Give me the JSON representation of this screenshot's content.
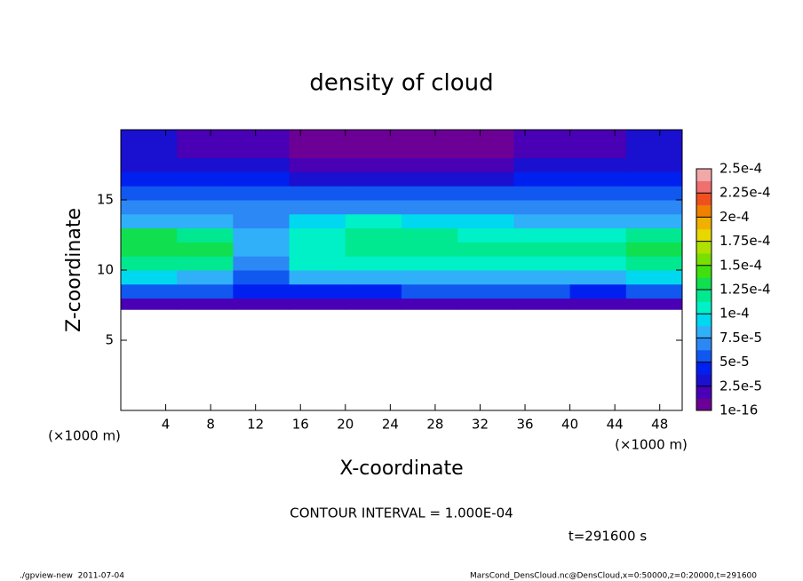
{
  "chart_data": {
    "type": "heatmap",
    "title": "density of cloud",
    "x_label": "X-coordinate",
    "y_label": "Z-coordinate",
    "x_unit_left": "(×1000 m)",
    "x_unit_right": "(×1000 m)",
    "xlim": [
      0,
      50
    ],
    "ylim": [
      0,
      20
    ],
    "xticks": [
      4,
      8,
      12,
      16,
      20,
      24,
      28,
      32,
      36,
      40,
      44,
      48
    ],
    "yticks": [
      5,
      10,
      15
    ],
    "x_bins": [
      0,
      5,
      10,
      15,
      20,
      25,
      30,
      35,
      40,
      45,
      50
    ],
    "y_bins": [
      7.2,
      8,
      9,
      10,
      11,
      12,
      13,
      14,
      15,
      16,
      17,
      18,
      19,
      20
    ],
    "values": [
      [
        1.5e-05,
        1.5e-05,
        1.8e-05,
        1.5e-05,
        1.8e-05,
        1.8e-05,
        1.8e-05,
        1.8e-05,
        1.5e-05,
        1.8e-05
      ],
      [
        5e-05,
        5e-05,
        4e-05,
        4.5e-05,
        4.5e-05,
        5e-05,
        5e-05,
        5e-05,
        4.5e-05,
        5e-05
      ],
      [
        9e-05,
        8.5e-05,
        6e-05,
        8e-05,
        8e-05,
        8.5e-05,
        8.5e-05,
        8e-05,
        8e-05,
        9e-05
      ],
      [
        0.00012,
        0.000115,
        7e-05,
        0.000105,
        0.00011,
        0.00011,
        0.00011,
        0.00011,
        0.000105,
        0.000115
      ],
      [
        0.00013,
        0.000125,
        8e-05,
        0.00011,
        0.00012,
        0.00012,
        0.000115,
        0.000115,
        0.000115,
        0.000125
      ],
      [
        0.000125,
        0.00012,
        7.5e-05,
        0.000105,
        0.000115,
        0.000115,
        0.00011,
        0.000105,
        0.00011,
        0.000115
      ],
      [
        8e-05,
        8e-05,
        7e-05,
        9e-05,
        0.0001,
        9.5e-05,
        9e-05,
        8.5e-05,
        8.5e-05,
        8e-05
      ],
      [
        6.5e-05,
        6.5e-05,
        7e-05,
        7e-05,
        7e-05,
        7e-05,
        6.5e-05,
        6.5e-05,
        6.5e-05,
        6.5e-05
      ],
      [
        5.5e-05,
        6e-05,
        6e-05,
        5e-05,
        5e-05,
        5e-05,
        5e-05,
        5.5e-05,
        5.5e-05,
        5.5e-05
      ],
      [
        4.5e-05,
        4.5e-05,
        4.5e-05,
        3.5e-05,
        3e-05,
        3e-05,
        3.5e-05,
        4e-05,
        4.5e-05,
        4.5e-05
      ],
      [
        3.5e-05,
        3e-05,
        2.5e-05,
        2e-05,
        1.5e-05,
        1.5e-05,
        2e-05,
        2.5e-05,
        3e-05,
        3.5e-05
      ],
      [
        2.5e-05,
        2e-05,
        1.5e-05,
        1e-05,
        1e-05,
        1e-05,
        1e-05,
        1.5e-05,
        2e-05,
        2.5e-05
      ],
      [
        2.5e-05,
        2e-05,
        1.5e-05,
        1e-05,
        5e-06,
        5e-06,
        1e-05,
        1.5e-05,
        2e-05,
        2.5e-05
      ]
    ],
    "colorbar_lim": [
      0,
      0.00025
    ],
    "colorbar_ticks": [
      1e-16,
      {
        "value": 2.5e-05,
        "label": "2.5e-5"
      },
      {
        "value": 5e-05,
        "label": "5e-5"
      },
      {
        "value": 7.5e-05,
        "label": "7.5e-5"
      },
      {
        "value": 0.0001,
        "label": "1e-4"
      },
      {
        "value": 0.000125,
        "label": "1.25e-4"
      },
      {
        "value": 0.00015,
        "label": "1.5e-4"
      },
      {
        "value": 0.000175,
        "label": "1.75e-4"
      },
      {
        "value": 0.0002,
        "label": "2e-4"
      },
      {
        "value": 0.000225,
        "label": "2.25e-4"
      },
      {
        "value": 0.00025,
        "label": "2.5e-4"
      }
    ],
    "colors": [
      "#6c0096",
      "#4a00b4",
      "#1a10d0",
      "#0020f0",
      "#1058f0",
      "#2c88f4",
      "#30b0f8",
      "#00d8f0",
      "#00f0c8",
      "#00e890",
      "#10e050",
      "#40e010",
      "#78e000",
      "#b0e000",
      "#e8d800",
      "#f0b000",
      "#f08000",
      "#f05020",
      "#f07070",
      "#f0a8a8"
    ],
    "annotation": "CONTOUR INTERVAL = 1.000E-04",
    "time_label": "t=291600 s",
    "footer_left": "./gpview-new  2011-07-04",
    "footer_right": "MarsCond_DensCloud.nc@DensCloud,x=0:50000,z=0:20000,t=291600"
  }
}
